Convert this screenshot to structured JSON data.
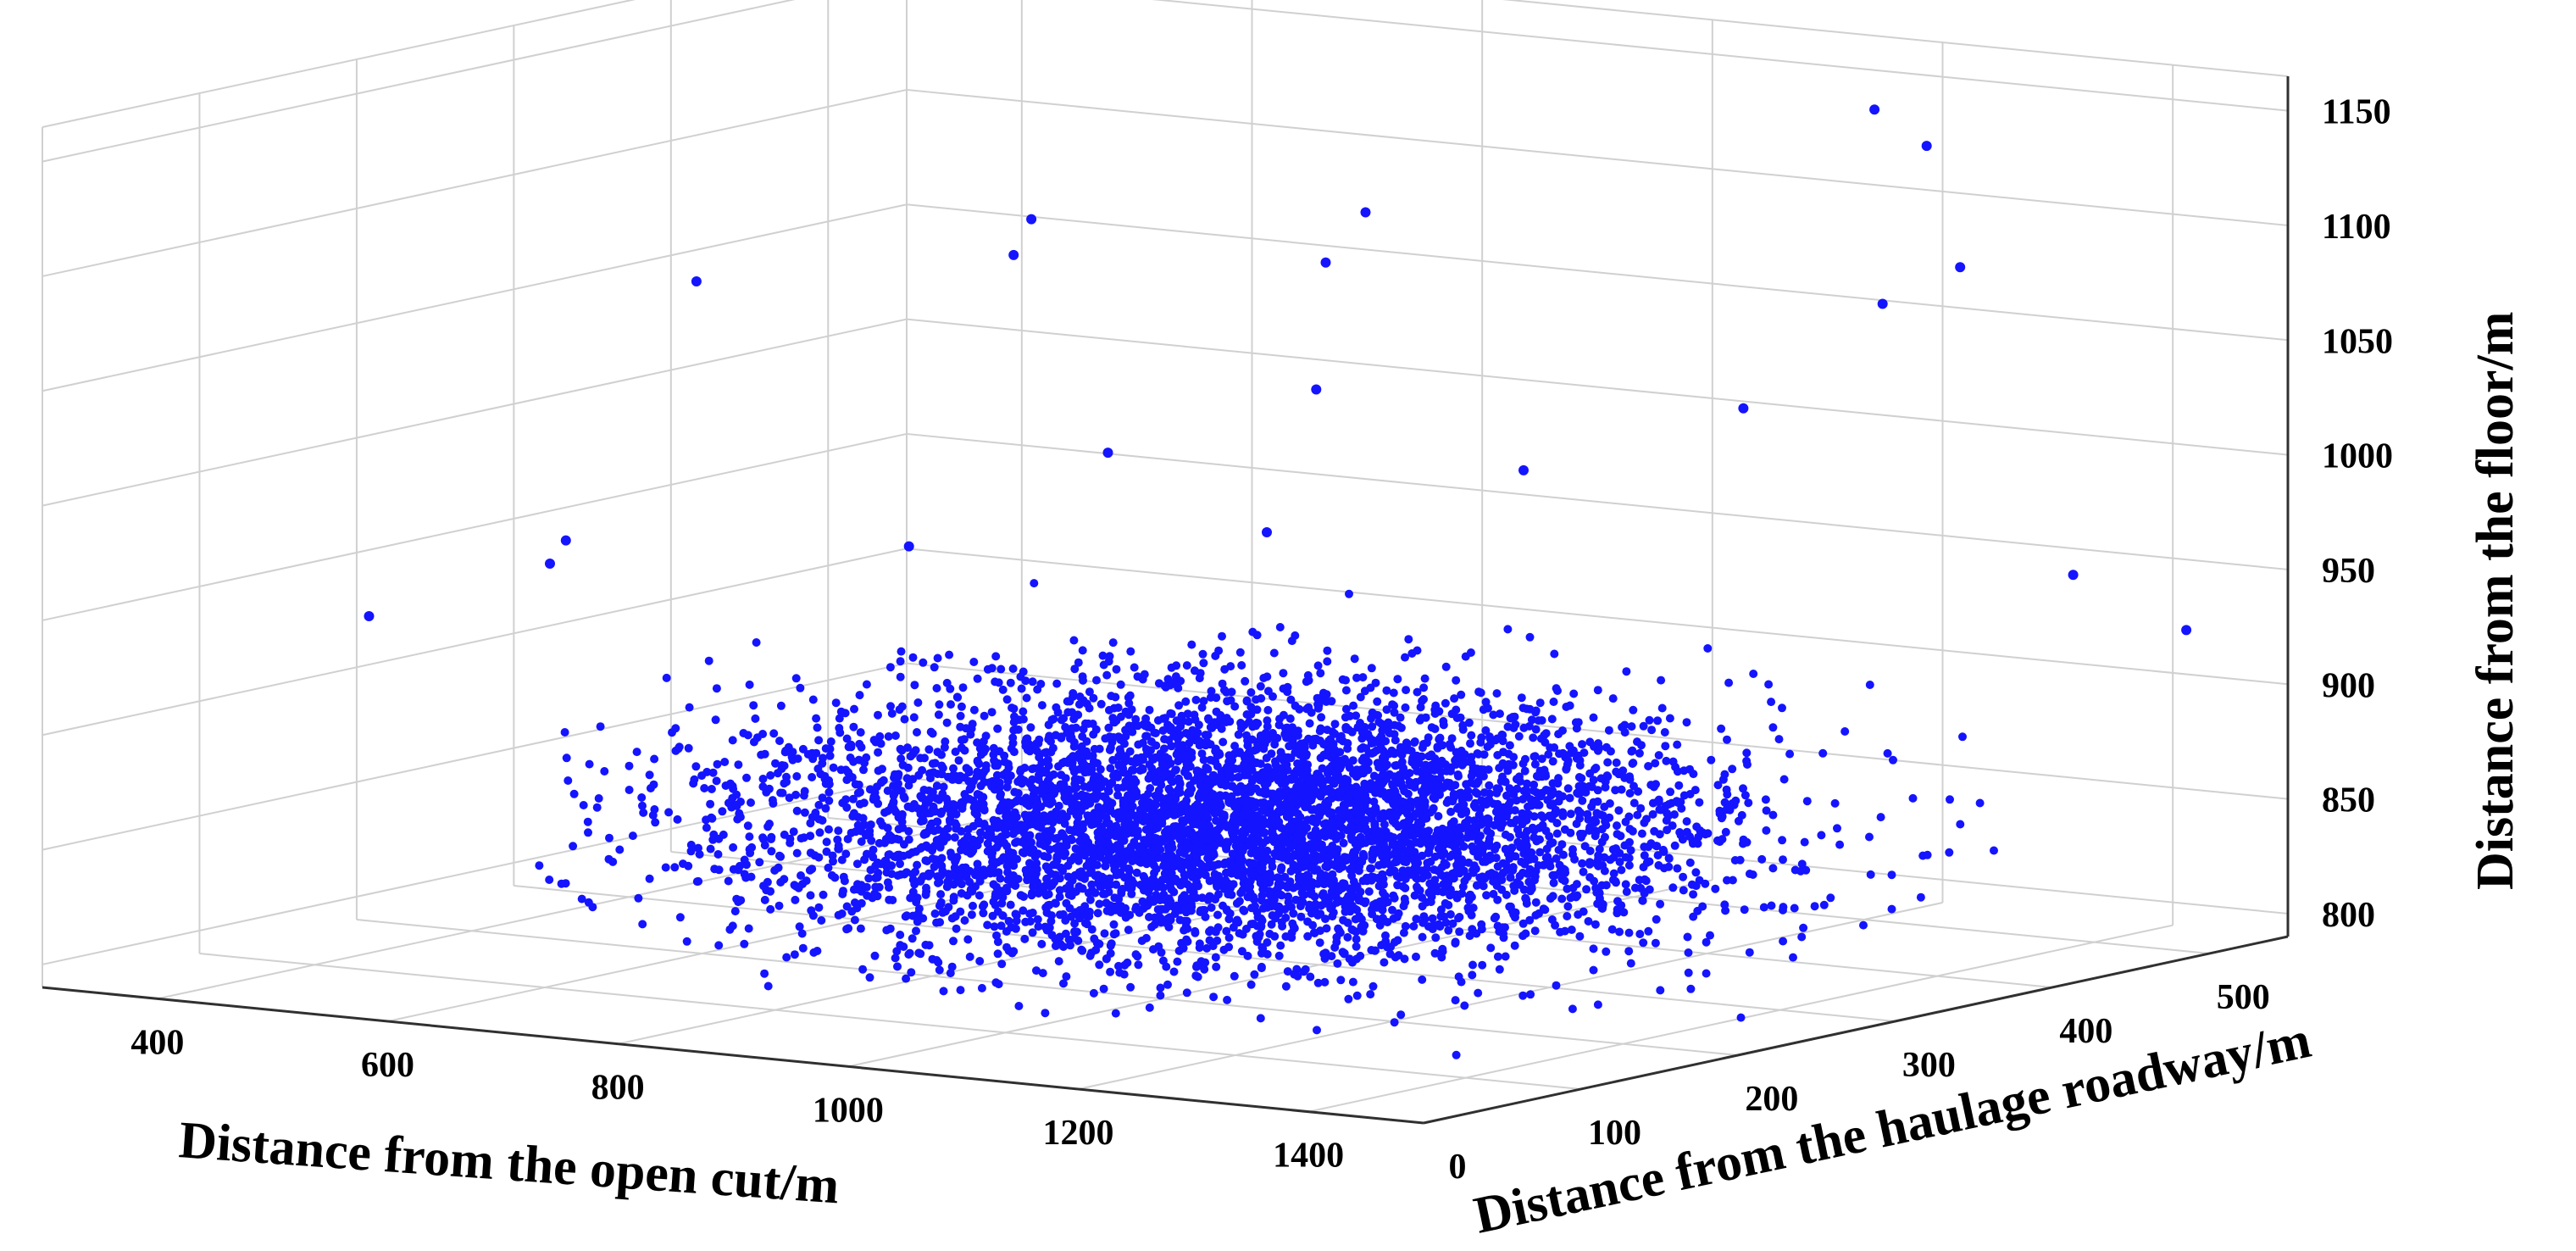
{
  "chart_data": {
    "type": "scatter",
    "projection": "3d",
    "point_color": "#1414ff",
    "grid": true,
    "x_axis": {
      "label": "Distance from the open cut/m",
      "ticks": [
        400,
        600,
        800,
        1000,
        1200,
        1400
      ],
      "range": [
        300,
        1500
      ]
    },
    "y_axis": {
      "label": "Distance from the haulage roadway/m",
      "ticks": [
        0,
        100,
        200,
        300,
        400,
        500
      ],
      "range": [
        0,
        550
      ]
    },
    "z_axis": {
      "label": "Distance from the floor/m",
      "ticks": [
        800,
        850,
        900,
        950,
        1000,
        1050,
        1100,
        1150
      ],
      "range": [
        790,
        1165
      ]
    },
    "series": [
      {
        "cluster": {
          "x_range": [
            400,
            1500
          ],
          "y_range": [
            0,
            500
          ],
          "z_range": [
            800,
            960
          ],
          "x_peak": 1000,
          "y_peak": 250,
          "z_peak": 860,
          "approx_count": 5500
        },
        "outliers": [
          [
            1050,
            80,
            1150
          ],
          [
            980,
            120,
            1125
          ],
          [
            1040,
            300,
            1120
          ],
          [
            800,
            50,
            1115
          ],
          [
            1350,
            430,
            1145
          ],
          [
            1250,
            470,
            1150
          ],
          [
            1060,
            260,
            1105
          ],
          [
            1420,
            400,
            1100
          ],
          [
            1380,
            380,
            1085
          ],
          [
            1120,
            210,
            1060
          ],
          [
            1300,
            350,
            1040
          ],
          [
            980,
            180,
            1030
          ],
          [
            1200,
            120,
            1015
          ],
          [
            1150,
            320,
            1010
          ],
          [
            930,
            90,
            1000
          ],
          [
            700,
            30,
            990
          ],
          [
            550,
            150,
            975
          ],
          [
            1450,
            450,
            960
          ],
          [
            1480,
            500,
            930
          ],
          [
            420,
            120,
            940
          ]
        ]
      }
    ]
  }
}
